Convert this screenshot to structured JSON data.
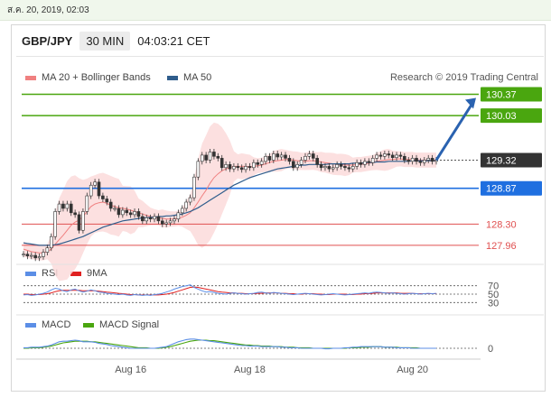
{
  "top_bar": {
    "date_label": "ส.ค. 20, 2019, 02:03"
  },
  "header": {
    "pair": "GBP/JPY",
    "timeframe": "30 MIN",
    "time": "04:03:21 CET"
  },
  "legend": {
    "ma20": "MA 20 + Bollinger Bands",
    "ma50": "MA 50",
    "credit": "Research © 2019 Trading Central"
  },
  "colors": {
    "ma20": "#f08080",
    "ma50": "#2f5d8c",
    "green_level": "#4aa60f",
    "blue_level": "#1f6fe0",
    "red_level": "#e05050",
    "rsi": "#5b8ee6",
    "ma9": "#e02020",
    "macd": "#5b8ee6",
    "macd_signal": "#4aa60f",
    "arrow": "#2a62b0"
  },
  "chart_data": [
    {
      "type": "line",
      "title": "GBP/JPY 30 MIN",
      "x_tick_labels": [
        "Aug 16",
        "Aug 18",
        "Aug 20"
      ],
      "price_levels": [
        {
          "label": "130.37",
          "value": 130.37,
          "kind": "resistance"
        },
        {
          "label": "130.03",
          "value": 130.03,
          "kind": "resistance"
        },
        {
          "label": "129.32",
          "value": 129.32,
          "kind": "current"
        },
        {
          "label": "128.87",
          "value": 128.87,
          "kind": "pivot"
        },
        {
          "label": "128.30",
          "value": 128.3,
          "kind": "support"
        },
        {
          "label": "127.96",
          "value": 127.96,
          "kind": "support"
        }
      ],
      "ylim": [
        127.7,
        130.55
      ],
      "series": [
        {
          "name": "GBP/JPY",
          "values": [
            127.82,
            127.79,
            127.8,
            127.76,
            127.78,
            127.85,
            127.92,
            128.1,
            128.5,
            128.62,
            128.55,
            128.62,
            128.48,
            128.45,
            128.2,
            128.5,
            128.75,
            128.92,
            128.97,
            128.75,
            128.7,
            128.65,
            128.55,
            128.55,
            128.45,
            128.52,
            128.48,
            128.45,
            128.5,
            128.42,
            128.35,
            128.4,
            128.38,
            128.42,
            128.35,
            128.3,
            128.32,
            128.35,
            128.38,
            128.48,
            128.55,
            128.65,
            128.72,
            129.05,
            129.3,
            129.4,
            129.32,
            129.45,
            129.38,
            129.35,
            129.2,
            129.25,
            129.18,
            129.22,
            129.2,
            129.17,
            129.22,
            129.2,
            129.28,
            129.25,
            129.3,
            129.38,
            129.32,
            129.42,
            129.37,
            129.4,
            129.35,
            129.3,
            129.2,
            129.25,
            129.32,
            129.38,
            129.42,
            129.35,
            129.25,
            129.2,
            129.22,
            129.18,
            129.2,
            129.25,
            129.22,
            129.2,
            129.18,
            129.22,
            129.28,
            129.25,
            129.3,
            129.28,
            129.35,
            129.4,
            129.38,
            129.42,
            129.4,
            129.36,
            129.4,
            129.38,
            129.32,
            129.3,
            129.35,
            129.3,
            129.28,
            129.32,
            129.35,
            129.3,
            129.32
          ]
        },
        {
          "name": "MA 20",
          "values": [
            127.9,
            127.88,
            127.86,
            127.85,
            127.84,
            127.84,
            127.86,
            127.9,
            127.98,
            128.05,
            128.12,
            128.2,
            128.28,
            128.33,
            128.36,
            128.42,
            128.5,
            128.58,
            128.62,
            128.64,
            128.65,
            128.63,
            128.6,
            128.58,
            128.56,
            128.55,
            128.54,
            128.52,
            128.5,
            128.48,
            128.46,
            128.44,
            128.42,
            128.41,
            128.4,
            128.39,
            128.38,
            128.38,
            128.38,
            128.39,
            128.41,
            128.44,
            128.48,
            128.56,
            128.65,
            128.75,
            128.84,
            128.95,
            129.04,
            129.1,
            129.15,
            129.18,
            129.2,
            129.22,
            129.22,
            129.22,
            129.22,
            129.21,
            129.22,
            129.23,
            129.24,
            129.26,
            129.28,
            129.3,
            129.31,
            129.32,
            129.33,
            129.33,
            129.32,
            129.31,
            129.3,
            129.3,
            129.31,
            129.31,
            129.3,
            129.29,
            129.28,
            129.27,
            129.26,
            129.25,
            129.25,
            129.24,
            129.24,
            129.24,
            129.25,
            129.25,
            129.26,
            129.27,
            129.28,
            129.3,
            129.31,
            129.32,
            129.33,
            129.33,
            129.34,
            129.34,
            129.33,
            129.33,
            129.33,
            129.32,
            129.32,
            129.32,
            129.32,
            129.32,
            129.32
          ]
        },
        {
          "name": "MA 50",
          "values": [
            128.0,
            127.99,
            127.98,
            127.97,
            127.96,
            127.96,
            127.96,
            127.96,
            127.97,
            127.98,
            128.0,
            128.02,
            128.04,
            128.06,
            128.08,
            128.1,
            128.13,
            128.16,
            128.19,
            128.22,
            128.25,
            128.27,
            128.29,
            128.31,
            128.33,
            128.35,
            128.36,
            128.37,
            128.38,
            128.39,
            128.4,
            128.4,
            128.41,
            128.41,
            128.42,
            128.42,
            128.43,
            128.43,
            128.44,
            128.45,
            128.46,
            128.48,
            128.5,
            128.53,
            128.56,
            128.6,
            128.64,
            128.68,
            128.72,
            128.76,
            128.8,
            128.84,
            128.88,
            128.92,
            128.95,
            128.98,
            129.01,
            129.04,
            129.06,
            129.08,
            129.1,
            129.12,
            129.14,
            129.16,
            129.18,
            129.19,
            129.2,
            129.21,
            129.22,
            129.23,
            129.24,
            129.24,
            129.25,
            129.25,
            129.25,
            129.25,
            129.25,
            129.26,
            129.26,
            129.26,
            129.26,
            129.26,
            129.26,
            129.27,
            129.27,
            129.27,
            129.28,
            129.28,
            129.28,
            129.29,
            129.29,
            129.29,
            129.3,
            129.3,
            129.3,
            129.3,
            129.3,
            129.3,
            129.31,
            129.31,
            129.31,
            129.31,
            129.31,
            129.31,
            129.31
          ]
        }
      ]
    },
    {
      "type": "line",
      "title": "RSI",
      "yticks": [
        70,
        50,
        30
      ],
      "ylim": [
        20,
        80
      ],
      "series": [
        {
          "name": "RSI",
          "values": [
            48,
            49,
            47,
            48,
            50,
            52,
            55,
            60,
            64,
            62,
            58,
            56,
            60,
            62,
            58,
            55,
            57,
            60,
            58,
            55,
            54,
            52,
            51,
            50,
            49,
            50,
            48,
            47,
            49,
            48,
            47,
            48,
            47,
            49,
            50,
            52,
            55,
            58,
            62,
            65,
            68,
            70,
            72,
            66,
            62,
            58,
            55,
            56,
            54,
            52,
            51,
            50,
            52,
            53,
            52,
            51,
            50,
            51,
            52,
            54,
            55,
            53,
            52,
            54,
            53,
            52,
            51,
            50,
            49,
            50,
            51,
            52,
            51,
            50,
            49,
            48,
            49,
            50,
            51,
            50,
            49,
            48,
            49,
            50,
            51,
            52,
            53,
            52,
            54,
            55,
            54,
            53,
            52,
            53,
            52,
            51,
            50,
            51,
            52,
            51,
            50,
            51,
            52,
            51,
            52
          ]
        },
        {
          "name": "9MA",
          "values": [
            50,
            50,
            49,
            49,
            49,
            50,
            51,
            53,
            56,
            58,
            59,
            59,
            59,
            59,
            59,
            58,
            58,
            58,
            58,
            57,
            56,
            55,
            54,
            53,
            52,
            51,
            50,
            49,
            49,
            48,
            48,
            48,
            48,
            48,
            48,
            49,
            50,
            52,
            54,
            57,
            60,
            63,
            66,
            67,
            66,
            64,
            62,
            60,
            58,
            56,
            55,
            54,
            53,
            53,
            52,
            52,
            51,
            51,
            51,
            52,
            52,
            53,
            53,
            53,
            53,
            52,
            52,
            51,
            51,
            50,
            50,
            51,
            51,
            51,
            50,
            50,
            49,
            49,
            50,
            50,
            50,
            50,
            49,
            49,
            50,
            50,
            51,
            51,
            52,
            53,
            53,
            53,
            53,
            53,
            53,
            52,
            52,
            52,
            52,
            51,
            51,
            51,
            51,
            51,
            51
          ]
        }
      ]
    },
    {
      "type": "line",
      "title": "MACD",
      "yticks": [
        0
      ],
      "ylim": [
        -0.1,
        0.3
      ],
      "series": [
        {
          "name": "MACD",
          "values": [
            0.01,
            0.01,
            0.02,
            0.02,
            0.02,
            0.03,
            0.04,
            0.06,
            0.09,
            0.12,
            0.13,
            0.13,
            0.14,
            0.15,
            0.14,
            0.12,
            0.12,
            0.12,
            0.11,
            0.09,
            0.08,
            0.07,
            0.05,
            0.04,
            0.03,
            0.02,
            0.01,
            0.0,
            0.0,
            0.0,
            0.0,
            0.0,
            0.0,
            0.0,
            0.01,
            0.02,
            0.03,
            0.06,
            0.09,
            0.12,
            0.14,
            0.16,
            0.17,
            0.17,
            0.16,
            0.15,
            0.14,
            0.13,
            0.12,
            0.11,
            0.1,
            0.09,
            0.08,
            0.07,
            0.06,
            0.05,
            0.05,
            0.04,
            0.04,
            0.04,
            0.03,
            0.03,
            0.03,
            0.03,
            0.03,
            0.02,
            0.02,
            0.01,
            0.01,
            0.01,
            0.0,
            0.0,
            0.0,
            0.0,
            0.0,
            0.0,
            -0.01,
            -0.01,
            0.0,
            0.0,
            0.0,
            0.01,
            0.01,
            0.02,
            0.02,
            0.03,
            0.03,
            0.03,
            0.03,
            0.03,
            0.03,
            0.02,
            0.02,
            0.02,
            0.01,
            0.01,
            0.01,
            0.01,
            0.0,
            0.0,
            0.0,
            0.0,
            0.0,
            0.0,
            0.0
          ]
        },
        {
          "name": "MACD Signal",
          "values": [
            0.0,
            0.0,
            0.01,
            0.01,
            0.01,
            0.02,
            0.03,
            0.04,
            0.06,
            0.08,
            0.1,
            0.11,
            0.12,
            0.13,
            0.13,
            0.13,
            0.13,
            0.12,
            0.12,
            0.11,
            0.1,
            0.09,
            0.08,
            0.07,
            0.06,
            0.05,
            0.04,
            0.03,
            0.02,
            0.01,
            0.01,
            0.01,
            0.0,
            0.0,
            0.0,
            0.01,
            0.02,
            0.03,
            0.05,
            0.07,
            0.09,
            0.11,
            0.13,
            0.14,
            0.15,
            0.15,
            0.15,
            0.14,
            0.14,
            0.13,
            0.12,
            0.11,
            0.1,
            0.09,
            0.08,
            0.07,
            0.06,
            0.06,
            0.05,
            0.05,
            0.04,
            0.04,
            0.04,
            0.03,
            0.03,
            0.03,
            0.02,
            0.02,
            0.02,
            0.01,
            0.01,
            0.01,
            0.01,
            0.0,
            0.0,
            0.0,
            0.0,
            0.0,
            0.0,
            0.0,
            0.0,
            0.0,
            0.01,
            0.01,
            0.01,
            0.02,
            0.02,
            0.02,
            0.03,
            0.03,
            0.03,
            0.02,
            0.02,
            0.02,
            0.02,
            0.01,
            0.01,
            0.01,
            0.01,
            0.01,
            0.0,
            0.0,
            0.0,
            0.0,
            0.0
          ]
        }
      ]
    }
  ]
}
